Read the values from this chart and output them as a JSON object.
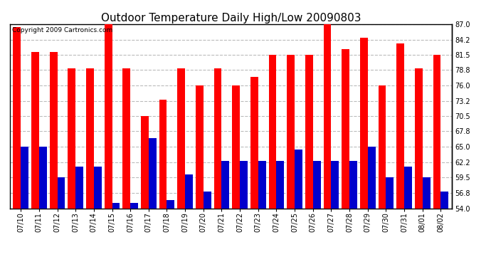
{
  "title": "Outdoor Temperature Daily High/Low 20090803",
  "copyright_text": "Copyright 2009 Cartronics.com",
  "dates": [
    "07/10",
    "07/11",
    "07/12",
    "07/13",
    "07/14",
    "07/15",
    "07/16",
    "07/17",
    "07/18",
    "07/19",
    "07/20",
    "07/21",
    "07/22",
    "07/23",
    "07/24",
    "07/25",
    "07/26",
    "07/27",
    "07/28",
    "07/29",
    "07/30",
    "07/31",
    "08/01",
    "08/02"
  ],
  "highs": [
    86.5,
    82.0,
    82.0,
    79.0,
    79.0,
    87.5,
    79.0,
    70.5,
    73.5,
    79.0,
    76.0,
    79.0,
    76.0,
    77.5,
    81.5,
    81.5,
    81.5,
    87.0,
    82.5,
    84.5,
    76.0,
    83.5,
    79.0,
    81.5
  ],
  "lows": [
    65.0,
    65.0,
    59.5,
    61.5,
    61.5,
    55.0,
    55.0,
    66.5,
    55.5,
    60.0,
    57.0,
    62.5,
    62.5,
    62.5,
    62.5,
    64.5,
    62.5,
    62.5,
    62.5,
    65.0,
    59.5,
    61.5,
    59.5,
    57.0
  ],
  "high_color": "#ff0000",
  "low_color": "#0000cc",
  "bg_color": "#ffffff",
  "plot_bg_color": "#ffffff",
  "grid_color": "#bbbbbb",
  "ylabel_right": [
    "87.0",
    "84.2",
    "81.5",
    "78.8",
    "76.0",
    "73.2",
    "70.5",
    "67.8",
    "65.0",
    "62.2",
    "59.5",
    "56.8",
    "54.0"
  ],
  "yticks": [
    87.0,
    84.2,
    81.5,
    78.8,
    76.0,
    73.2,
    70.5,
    67.8,
    65.0,
    62.2,
    59.5,
    56.8,
    54.0
  ],
  "ylim": [
    54.0,
    87.0
  ],
  "bar_width": 0.42,
  "title_fontsize": 11,
  "tick_fontsize": 7,
  "copyright_fontsize": 6.5
}
